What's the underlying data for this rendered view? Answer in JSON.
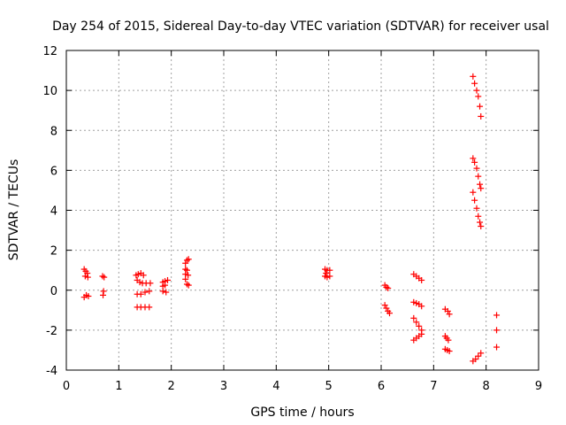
{
  "chart_data": {
    "type": "scatter",
    "title": "Day 254 of 2015, Sidereal Day-to-day VTEC variation (SDTVAR) for receiver usal",
    "xlabel": "GPS time / hours",
    "ylabel": "SDTVAR / TECUs",
    "xlim": [
      0,
      9
    ],
    "ylim": [
      -4,
      12
    ],
    "xticks": [
      "0",
      "1",
      "2",
      "3",
      "4",
      "5",
      "6",
      "7",
      "8",
      "9"
    ],
    "yticks": [
      "-4",
      "-2",
      "0",
      "2",
      "4",
      "6",
      "8",
      "10",
      "12"
    ],
    "grid": true,
    "marker": "+",
    "color": "#ff0000",
    "series": [
      {
        "name": "SDTVAR",
        "points": [
          [
            0.34,
            1.05
          ],
          [
            0.37,
            0.95
          ],
          [
            0.4,
            0.85
          ],
          [
            0.36,
            0.7
          ],
          [
            0.41,
            0.65
          ],
          [
            0.34,
            -0.35
          ],
          [
            0.38,
            -0.25
          ],
          [
            0.42,
            -0.3
          ],
          [
            0.69,
            0.7
          ],
          [
            0.72,
            0.65
          ],
          [
            0.71,
            -0.05
          ],
          [
            0.7,
            -0.25
          ],
          [
            1.33,
            0.75
          ],
          [
            1.37,
            0.8
          ],
          [
            1.42,
            0.85
          ],
          [
            1.47,
            0.75
          ],
          [
            1.35,
            0.5
          ],
          [
            1.4,
            0.4
          ],
          [
            1.45,
            0.35
          ],
          [
            1.52,
            0.35
          ],
          [
            1.6,
            0.35
          ],
          [
            1.35,
            -0.2
          ],
          [
            1.42,
            -0.2
          ],
          [
            1.5,
            -0.1
          ],
          [
            1.58,
            -0.05
          ],
          [
            1.35,
            -0.85
          ],
          [
            1.42,
            -0.85
          ],
          [
            1.5,
            -0.85
          ],
          [
            1.58,
            -0.85
          ],
          [
            1.84,
            0.4
          ],
          [
            1.88,
            0.45
          ],
          [
            1.93,
            0.5
          ],
          [
            1.84,
            0.2
          ],
          [
            1.88,
            0.25
          ],
          [
            1.84,
            -0.05
          ],
          [
            1.9,
            -0.1
          ],
          [
            2.27,
            1.35
          ],
          [
            2.3,
            1.5
          ],
          [
            2.33,
            1.55
          ],
          [
            2.27,
            1.05
          ],
          [
            2.3,
            1.0
          ],
          [
            2.27,
            0.8
          ],
          [
            2.32,
            0.75
          ],
          [
            2.27,
            0.55
          ],
          [
            2.3,
            0.3
          ],
          [
            2.33,
            0.25
          ],
          [
            4.93,
            1.05
          ],
          [
            4.97,
            1.0
          ],
          [
            5.02,
            1.0
          ],
          [
            4.95,
            0.85
          ],
          [
            4.93,
            0.7
          ],
          [
            4.97,
            0.65
          ],
          [
            5.02,
            0.7
          ],
          [
            6.07,
            0.25
          ],
          [
            6.1,
            0.15
          ],
          [
            6.13,
            0.1
          ],
          [
            6.07,
            -0.75
          ],
          [
            6.1,
            -0.9
          ],
          [
            6.13,
            -1.05
          ],
          [
            6.16,
            -1.15
          ],
          [
            6.62,
            0.8
          ],
          [
            6.67,
            0.7
          ],
          [
            6.72,
            0.6
          ],
          [
            6.77,
            0.5
          ],
          [
            6.62,
            -0.6
          ],
          [
            6.67,
            -0.65
          ],
          [
            6.72,
            -0.7
          ],
          [
            6.77,
            -0.8
          ],
          [
            6.62,
            -1.4
          ],
          [
            6.67,
            -1.6
          ],
          [
            6.72,
            -1.8
          ],
          [
            6.77,
            -2.0
          ],
          [
            6.62,
            -2.5
          ],
          [
            6.67,
            -2.4
          ],
          [
            6.72,
            -2.3
          ],
          [
            6.77,
            -2.2
          ],
          [
            7.22,
            -0.95
          ],
          [
            7.27,
            -1.05
          ],
          [
            7.3,
            -1.2
          ],
          [
            7.22,
            -2.3
          ],
          [
            7.25,
            -2.4
          ],
          [
            7.28,
            -2.5
          ],
          [
            7.22,
            -2.95
          ],
          [
            7.26,
            -3.0
          ],
          [
            7.3,
            -3.05
          ],
          [
            7.75,
            10.7
          ],
          [
            7.78,
            10.35
          ],
          [
            7.82,
            10.0
          ],
          [
            7.85,
            9.7
          ],
          [
            7.88,
            9.2
          ],
          [
            7.9,
            8.7
          ],
          [
            7.75,
            6.6
          ],
          [
            7.78,
            6.4
          ],
          [
            7.82,
            6.1
          ],
          [
            7.85,
            5.7
          ],
          [
            7.88,
            5.3
          ],
          [
            7.9,
            5.1
          ],
          [
            7.75,
            4.9
          ],
          [
            7.78,
            4.5
          ],
          [
            7.82,
            4.1
          ],
          [
            7.85,
            3.7
          ],
          [
            7.88,
            3.4
          ],
          [
            7.9,
            3.2
          ],
          [
            7.75,
            -3.55
          ],
          [
            7.8,
            -3.45
          ],
          [
            7.85,
            -3.3
          ],
          [
            7.9,
            -3.15
          ],
          [
            8.2,
            -1.25
          ],
          [
            8.2,
            -2.0
          ],
          [
            8.2,
            -2.85
          ]
        ]
      }
    ]
  }
}
